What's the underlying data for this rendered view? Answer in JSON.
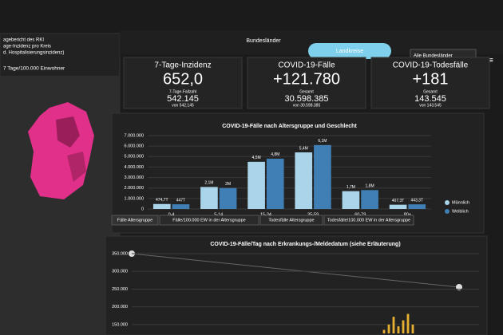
{
  "left_panel": {
    "title_lines": [
      "agebericht des RKI",
      "age-Inzidenz pro Kreis",
      "d. Hospitalisierungsinzidenz)"
    ],
    "map_caption": "7 Tage/100.000 Einwohner"
  },
  "header": {
    "tabs": [
      "Bundesländer",
      "Landkreise"
    ],
    "dropdown": "Alle Bundesländer"
  },
  "cards": [
    {
      "title": "7-Tage-Inzidenz",
      "value": "652,0",
      "sub_label": "7-Tage-Fallzahl",
      "sub_value": "542.145",
      "note": "von 542.145"
    },
    {
      "title": "COVID-19-Fälle",
      "value": "+121.780",
      "sub_label": "Gesamt",
      "sub_value": "30.598.385",
      "note": "von 30.598.385"
    },
    {
      "title": "COVID-19-Todesfälle",
      "value": "+181",
      "sub_label": "Gesamt",
      "sub_value": "143.545",
      "note": "von 143.545"
    }
  ],
  "age_chart": {
    "type": "bar",
    "title": "COVID-19-Fälle nach Altersgruppe und Geschlecht",
    "categories": [
      "0-4",
      "5-14",
      "15-34",
      "35-59",
      "60-79",
      "80+"
    ],
    "series": [
      {
        "name": "Männlich",
        "color": "#a9d4ea",
        "values": [
          474700,
          2100000,
          4500000,
          5400000,
          1700000,
          407300
        ],
        "value_labels": [
          "474,7T",
          "2,1M",
          "4,5M",
          "5,4M",
          "1,7M",
          "407,3T"
        ]
      },
      {
        "name": "Weiblich",
        "color": "#3f7fb5",
        "values": [
          447000,
          2000000,
          4800000,
          6100000,
          1800000,
          443300
        ],
        "value_labels": [
          "447T",
          "2M",
          "4,8M",
          "6,1M",
          "1,8M",
          "443,3T"
        ]
      }
    ],
    "ylim": [
      0,
      7000000
    ],
    "yticks": [
      0,
      {
        "value": 1000000,
        "label": "1.000.000"
      },
      {
        "value": 2000000,
        "label": "2.000.000"
      },
      {
        "value": 3000000,
        "label": "3.000.000"
      },
      {
        "value": 4000000,
        "label": "4.000.000"
      },
      {
        "value": 5000000,
        "label": "5.000.000"
      },
      {
        "value": 6000000,
        "label": "6.000.000"
      },
      {
        "value": 7000000,
        "label": "7.000.000"
      }
    ],
    "tabs": [
      "Fälle Altersgruppe",
      "Fälle/100.000 EW in der Altersgruppe",
      "Todesfälle Altersgruppe",
      "Todesfälle/100.000 EW in der Altersgruppe"
    ]
  },
  "daily_chart": {
    "type": "bar",
    "title": "COVID-19-Fälle/Tag nach Erkrankungs-/Meldedatum (siehe Erläuterung)",
    "categories": [
      null,
      null,
      null,
      null,
      null,
      null,
      null
    ],
    "values": [
      135000,
      150000,
      172000,
      145000,
      162000,
      180000,
      150000
    ],
    "color": "#e8b030",
    "ylim": [
      125000,
      350000
    ],
    "yticks": [
      {
        "value": 350000,
        "label": "350.000"
      },
      {
        "value": 300000,
        "label": "300.000"
      },
      {
        "value": 250000,
        "label": "250.000"
      },
      {
        "value": 200000,
        "label": "200.000"
      },
      {
        "value": 150000,
        "label": "150.000"
      }
    ]
  }
}
